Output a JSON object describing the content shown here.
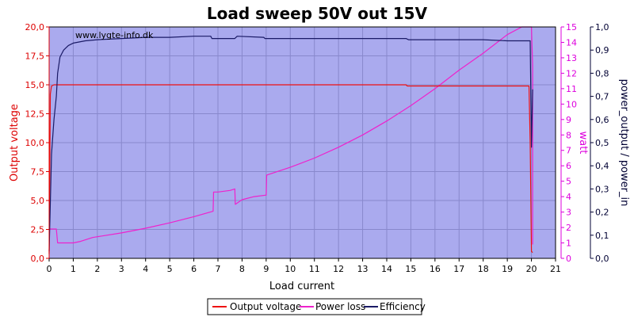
{
  "chart_data": {
    "type": "line",
    "title": "Load sweep 50V out 15V",
    "watermark": "www.lygte-info.dk",
    "xlabel": "Load current",
    "ylabel_left": "Output voltage",
    "ylabel_right1": "watt",
    "ylabel_right2": "power_output / power_in",
    "xlim": [
      0,
      21
    ],
    "ylim_left": [
      0,
      20
    ],
    "ylim_right1": [
      0,
      15
    ],
    "ylim_right2": [
      0,
      1
    ],
    "x_ticks": [
      "0",
      "1",
      "2",
      "3",
      "4",
      "5",
      "6",
      "7",
      "8",
      "9",
      "10",
      "11",
      "12",
      "13",
      "14",
      "15",
      "16",
      "17",
      "18",
      "19",
      "20",
      "21"
    ],
    "y_left_ticks": [
      "0,0",
      "2,5",
      "5,0",
      "7,5",
      "10,0",
      "12,5",
      "15,0",
      "17,5",
      "20,0"
    ],
    "y_right1_ticks": [
      "0",
      "1",
      "2",
      "3",
      "4",
      "5",
      "6",
      "7",
      "8",
      "9",
      "10",
      "11",
      "12",
      "13",
      "14",
      "15"
    ],
    "y_right2_ticks": [
      "0,0",
      "0,1",
      "0,2",
      "0,3",
      "0,4",
      "0,5",
      "0,6",
      "0,7",
      "0,8",
      "0,9",
      "1,0"
    ],
    "grid": true,
    "legend_position": "bottom-center",
    "colors": {
      "plot_bg": "#aaaaee",
      "grid": "#8888cc",
      "voltage": "#ee1111",
      "power": "#ee22cc",
      "efficiency": "#1a1a66",
      "left_axis": "#dd0000",
      "right1_axis": "#dd00dd",
      "right2_axis": "#000033"
    },
    "series": [
      {
        "name": "Output voltage",
        "axis": "left",
        "x": [
          0,
          0.05,
          0.1,
          0.2,
          0.3,
          1,
          3,
          5,
          7,
          9,
          11,
          13,
          14.8,
          14.85,
          16,
          18,
          19.9,
          19.95,
          20.0,
          20.05
        ],
        "y": [
          0.4,
          14.2,
          14.9,
          15.0,
          15.0,
          15.0,
          15.0,
          15.0,
          15.0,
          15.0,
          15.0,
          15.0,
          15.0,
          14.9,
          14.9,
          14.9,
          14.9,
          10.0,
          0.6,
          0.5
        ]
      },
      {
        "name": "Power loss",
        "axis": "right1",
        "x": [
          0,
          0.05,
          0.3,
          0.35,
          1,
          1.3,
          1.8,
          2,
          3,
          4,
          5,
          6,
          6.8,
          6.82,
          7,
          7.5,
          7.7,
          7.72,
          8,
          8.5,
          9,
          9.02,
          10,
          11,
          12,
          13,
          14,
          15,
          16,
          17,
          18,
          19,
          19.6,
          20.0,
          20.05,
          20.05
        ],
        "y": [
          1.9,
          1.9,
          1.9,
          1.0,
          1.0,
          1.1,
          1.35,
          1.4,
          1.65,
          1.95,
          2.3,
          2.7,
          3.05,
          4.3,
          4.3,
          4.4,
          4.5,
          3.5,
          3.8,
          4.0,
          4.1,
          5.4,
          5.9,
          6.5,
          7.2,
          8.0,
          8.9,
          9.9,
          11.0,
          12.2,
          13.3,
          14.5,
          15.0,
          15.0,
          12.5,
          0.9
        ]
      },
      {
        "name": "Efficiency",
        "axis": "right2",
        "x": [
          0,
          0.1,
          0.2,
          0.3,
          0.35,
          0.45,
          0.6,
          0.8,
          1,
          1.5,
          2,
          3,
          4,
          5,
          6,
          6.7,
          6.75,
          7.7,
          7.8,
          8.9,
          8.95,
          10,
          11,
          12,
          13,
          14,
          14.8,
          14.9,
          16,
          17,
          18,
          19,
          19.7,
          19.95,
          20.0,
          20.05
        ],
        "y": [
          0.03,
          0.45,
          0.6,
          0.7,
          0.8,
          0.87,
          0.9,
          0.92,
          0.93,
          0.94,
          0.945,
          0.95,
          0.955,
          0.955,
          0.96,
          0.96,
          0.95,
          0.95,
          0.96,
          0.955,
          0.95,
          0.95,
          0.95,
          0.95,
          0.95,
          0.95,
          0.95,
          0.945,
          0.945,
          0.945,
          0.945,
          0.94,
          0.94,
          0.94,
          0.48,
          0.73
        ]
      }
    ]
  }
}
